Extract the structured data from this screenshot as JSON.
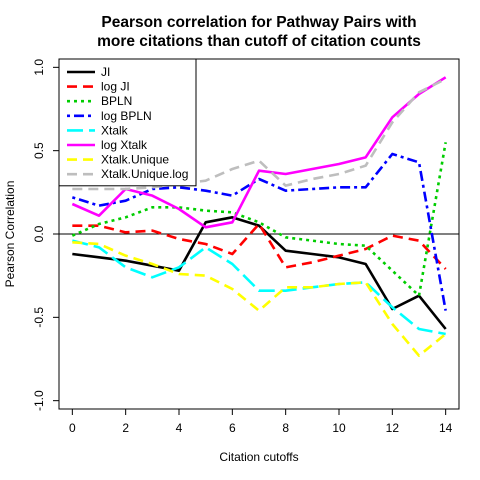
{
  "chart_data": {
    "type": "line",
    "title": [
      "Pearson correlation for Pathway Pairs with",
      "more citations than cutoff of citation counts"
    ],
    "xlabel": "Citation cutoffs",
    "ylabel": "Pearson Correlation",
    "xlim": [
      -0.5,
      14.5
    ],
    "ylim": [
      -1.05,
      1.05
    ],
    "xticks": [
      0,
      2,
      4,
      6,
      8,
      10,
      12,
      14
    ],
    "yticks": [
      -1.0,
      -0.5,
      0.0,
      0.5,
      1.0
    ],
    "ytick_labels": [
      "-1.0",
      "-0.5",
      "0.0",
      "0.5",
      "1.0"
    ],
    "hline": 0,
    "legend_position": "top-left",
    "x": [
      0,
      1,
      2,
      3,
      4,
      5,
      6,
      7,
      8,
      9,
      10,
      11,
      12,
      13,
      14
    ],
    "series": [
      {
        "name": "JI",
        "color": "#000000",
        "dash": "solid",
        "values": [
          -0.12,
          -0.14,
          -0.16,
          -0.19,
          -0.22,
          0.07,
          0.1,
          0.05,
          -0.1,
          -0.12,
          -0.14,
          -0.18,
          -0.45,
          -0.37,
          -0.57
        ]
      },
      {
        "name": "log JI",
        "color": "#ff0000",
        "dash": "dashed",
        "values": [
          0.05,
          0.05,
          0.01,
          0.02,
          -0.03,
          -0.06,
          -0.12,
          0.06,
          -0.2,
          -0.17,
          -0.13,
          -0.09,
          -0.01,
          -0.04,
          -0.21
        ]
      },
      {
        "name": "BPLN",
        "color": "#00cd00",
        "dash": "dotted",
        "values": [
          -0.01,
          0.06,
          0.1,
          0.16,
          0.16,
          0.14,
          0.13,
          0.07,
          -0.02,
          -0.04,
          -0.06,
          -0.07,
          -0.22,
          -0.37,
          0.55
        ]
      },
      {
        "name": "log BPLN",
        "color": "#0000ff",
        "dash": "dotdash",
        "values": [
          0.22,
          0.17,
          0.2,
          0.27,
          0.28,
          0.26,
          0.23,
          0.33,
          0.26,
          0.27,
          0.28,
          0.28,
          0.48,
          0.43,
          -0.46
        ]
      },
      {
        "name": "Xtalk",
        "color": "#00ffff",
        "dash": "longdash",
        "values": [
          -0.04,
          -0.08,
          -0.2,
          -0.26,
          -0.2,
          -0.08,
          -0.18,
          -0.34,
          -0.34,
          -0.32,
          -0.3,
          -0.29,
          -0.44,
          -0.57,
          -0.6
        ]
      },
      {
        "name": "log Xtalk",
        "color": "#ff00ff",
        "dash": "solid",
        "values": [
          0.18,
          0.11,
          0.27,
          0.23,
          0.15,
          0.04,
          0.07,
          0.38,
          0.36,
          0.39,
          0.42,
          0.46,
          0.7,
          0.84,
          0.94
        ]
      },
      {
        "name": "Xtalk.Unique",
        "color": "#ffff00",
        "dash": "dashed",
        "values": [
          -0.05,
          -0.06,
          -0.13,
          -0.18,
          -0.24,
          -0.25,
          -0.33,
          -0.46,
          -0.32,
          -0.32,
          -0.3,
          -0.29,
          -0.54,
          -0.73,
          -0.6
        ]
      },
      {
        "name": "Xtalk.Unique.log",
        "color": "#bebebe",
        "dash": "dashed",
        "values": [
          0.27,
          0.27,
          0.27,
          0.28,
          0.3,
          0.32,
          0.39,
          0.44,
          0.29,
          0.33,
          0.36,
          0.41,
          0.67,
          0.85,
          0.93
        ]
      }
    ]
  }
}
